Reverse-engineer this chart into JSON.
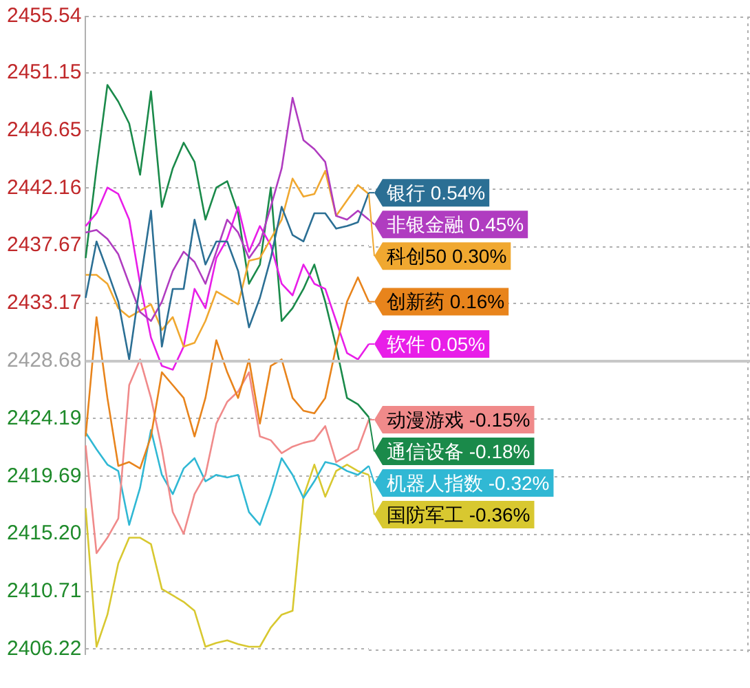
{
  "chart_data": {
    "type": "line",
    "categories": [
      null,
      null,
      null,
      null,
      null,
      null,
      null,
      null,
      null,
      null,
      null,
      null,
      null,
      null,
      null,
      null,
      null,
      null,
      null,
      null,
      null,
      null,
      null,
      null,
      null,
      null,
      null
    ],
    "series": [
      {
        "name": "银行 0.54%",
        "color": "#2b6f94",
        "values": [
          2433.6,
          2438.0,
          2435.7,
          2433.3,
          2428.8,
          2434.7,
          2440.4,
          2429.8,
          2434.3,
          2434.3,
          2439.7,
          2436.2,
          2438.0,
          2438.0,
          2435.7,
          2431.3,
          2433.6,
          2436.7,
          2440.7,
          2438.5,
          2438.0,
          2440.2,
          2440.2,
          2439.0,
          2439.2,
          2439.5,
          2441.8
        ]
      },
      {
        "name": "非银金融 0.45%",
        "color": "#b03cc0",
        "values": [
          2438.7,
          2438.9,
          2438.2,
          2437.0,
          2434.7,
          2432.5,
          2431.8,
          2433.3,
          2435.7,
          2437.2,
          2436.4,
          2434.7,
          2437.2,
          2439.7,
          2438.7,
          2436.7,
          2437.9,
          2440.7,
          2443.7,
          2449.2,
          2445.9,
          2445.2,
          2444.2,
          2440.0,
          2439.7,
          2440.4,
          2439.7
        ]
      },
      {
        "name": "科创50 0.30%",
        "color": "#f0a830",
        "values": [
          2435.4,
          2435.4,
          2434.7,
          2432.8,
          2432.1,
          2432.6,
          2433.1,
          2431.1,
          2432.1,
          2429.8,
          2430.1,
          2431.8,
          2434.1,
          2433.6,
          2433.1,
          2436.5,
          2436.7,
          2438.2,
          2439.7,
          2442.9,
          2441.5,
          2441.7,
          2443.5,
          2440.0,
          2441.2,
          2442.4,
          2441.7
        ]
      },
      {
        "name": "创新药 0.16%",
        "color": "#e8841c",
        "values": [
          2422.8,
          2432.1,
          2425.8,
          2420.5,
          2420.8,
          2420.3,
          2422.8,
          2427.8,
          2426.8,
          2425.8,
          2422.8,
          2425.8,
          2430.3,
          2427.8,
          2425.8,
          2428.8,
          2423.8,
          2428.3,
          2428.8,
          2425.8,
          2424.8,
          2424.6,
          2425.8,
          2429.8,
          2433.3,
          2435.2,
          2433.3
        ]
      },
      {
        "name": "软件 0.05%",
        "color": "#e81ee8",
        "values": [
          2439.2,
          2440.2,
          2442.2,
          2441.7,
          2439.7,
          2434.7,
          2430.5,
          2428.3,
          2428.0,
          2429.8,
          2434.3,
          2432.8,
          2436.7,
          2438.2,
          2440.7,
          2437.2,
          2439.2,
          2437.7,
          2434.7,
          2433.8,
          2436.2,
          2434.7,
          2434.3,
          2431.8,
          2429.3,
          2428.8,
          2430.0
        ]
      },
      {
        "name": "动漫游戏 -0.15%",
        "color": "#f08a8a",
        "values": [
          2422.1,
          2413.7,
          2414.9,
          2416.4,
          2426.8,
          2428.8,
          2425.8,
          2421.8,
          2416.9,
          2415.2,
          2418.3,
          2419.8,
          2423.8,
          2425.5,
          2426.3,
          2427.8,
          2422.8,
          2422.5,
          2421.5,
          2422.0,
          2422.3,
          2422.5,
          2423.6,
          2420.8,
          2421.3,
          2421.8,
          2424.1
        ]
      },
      {
        "name": "通信设备 -0.18%",
        "color": "#1a8a4a",
        "values": [
          2436.7,
          2443.7,
          2450.2,
          2448.9,
          2447.2,
          2443.2,
          2449.7,
          2440.7,
          2443.7,
          2445.7,
          2444.2,
          2439.7,
          2442.2,
          2442.7,
          2440.2,
          2434.7,
          2436.2,
          2442.2,
          2431.8,
          2432.8,
          2434.3,
          2436.2,
          2433.3,
          2429.8,
          2425.8,
          2425.3,
          2424.3
        ]
      },
      {
        "name": "机器人指数 -0.32%",
        "color": "#30b8d4",
        "values": [
          2423.1,
          2421.8,
          2420.6,
          2420.1,
          2415.9,
          2418.8,
          2423.3,
          2419.8,
          2418.3,
          2420.3,
          2421.1,
          2419.3,
          2419.8,
          2419.6,
          2419.8,
          2416.9,
          2415.9,
          2418.3,
          2421.1,
          2419.8,
          2418.0,
          2419.3,
          2420.8,
          2420.6,
          2420.1,
          2419.8,
          2420.5
        ]
      },
      {
        "name": "国防军工 -0.36%",
        "color": "#d8c830",
        "values": [
          2417.2,
          2406.4,
          2408.9,
          2412.9,
          2414.9,
          2414.9,
          2414.4,
          2410.9,
          2410.4,
          2409.9,
          2409.2,
          2406.4,
          2406.7,
          2406.9,
          2406.6,
          2406.4,
          2406.4,
          2407.9,
          2408.9,
          2409.2,
          2418.1,
          2420.6,
          2418.1,
          2420.1,
          2420.6,
          2420.1,
          2419.8
        ]
      }
    ],
    "ylim": [
      2405.8,
      2455.54
    ],
    "yticks": [
      2406.22,
      2410.71,
      {
        "value": 2415.2,
        "label": "2415.20"
      },
      2419.69,
      2424.19,
      2428.68,
      2433.17,
      2437.67,
      2442.16,
      2446.65,
      2451.15,
      2455.54
    ],
    "ref_lines": [
      {
        "axis": "y",
        "value": 2428.68,
        "color": "#c8c8c8"
      }
    ],
    "grid": "y",
    "legend": "right"
  }
}
